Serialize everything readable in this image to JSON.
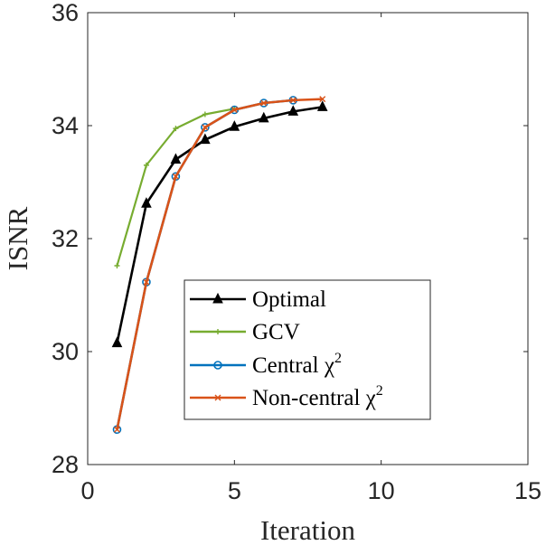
{
  "chart_data": {
    "type": "line",
    "title": "",
    "xlabel": "Iteration",
    "ylabel": "ISNR",
    "xlim": [
      0,
      15
    ],
    "ylim": [
      28,
      36
    ],
    "xticks": [
      0,
      5,
      10,
      15
    ],
    "yticks": [
      28,
      30,
      32,
      34,
      36
    ],
    "xtick_labels": [
      "0",
      "5",
      "10",
      "15"
    ],
    "ytick_labels": [
      "28",
      "30",
      "32",
      "34",
      "36"
    ],
    "grid": false,
    "legend_position": "bottom-right",
    "series": [
      {
        "name": "Optimal",
        "label_text": "Optimal",
        "label_sup": "",
        "color": "#000000",
        "marker": "triangle",
        "x": [
          1,
          2,
          3,
          4,
          5,
          6,
          7,
          8
        ],
        "values": [
          30.15,
          32.62,
          33.4,
          33.75,
          33.98,
          34.13,
          34.25,
          34.33
        ]
      },
      {
        "name": "GCV",
        "label_text": "GCV",
        "label_sup": "",
        "color": "#77AC30",
        "marker": "plus",
        "x": [
          1,
          2,
          3,
          4,
          5
        ],
        "values": [
          31.52,
          33.3,
          33.95,
          34.2,
          34.3
        ]
      },
      {
        "name": "Central χ2",
        "label_text": "Central χ",
        "label_sup": "2",
        "color": "#0072BD",
        "marker": "circle",
        "x": [
          1,
          2,
          3,
          4,
          5,
          6,
          7
        ],
        "values": [
          28.62,
          31.23,
          33.1,
          33.97,
          34.28,
          34.4,
          34.45
        ]
      },
      {
        "name": "Non-central χ2",
        "label_text": "Non-central χ",
        "label_sup": "2",
        "color": "#D95319",
        "marker": "x",
        "x": [
          1,
          2,
          3,
          4,
          5,
          6,
          7,
          8
        ],
        "values": [
          28.62,
          31.23,
          33.1,
          33.97,
          34.28,
          34.4,
          34.45,
          34.47
        ]
      }
    ]
  }
}
